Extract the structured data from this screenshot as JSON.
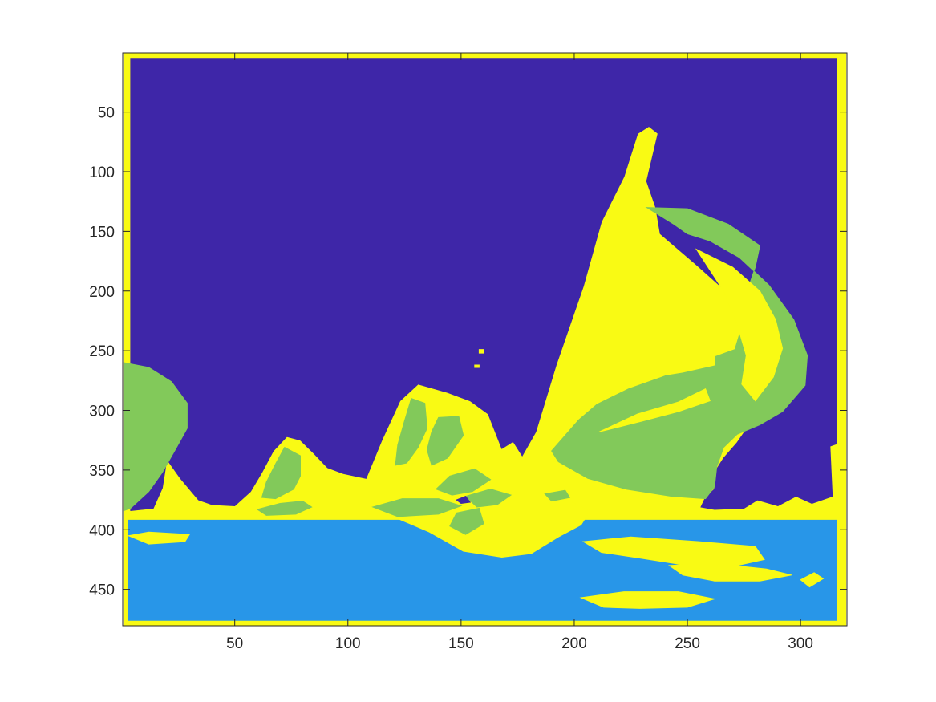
{
  "chart_data": {
    "type": "heatmap",
    "title": "",
    "xlabel": "",
    "ylabel": "",
    "xlim": [
      1,
      320
    ],
    "ylim": [
      1,
      480
    ],
    "y_reversed": true,
    "x_ticks": [
      50,
      100,
      150,
      200,
      250,
      300
    ],
    "y_ticks": [
      50,
      100,
      150,
      200,
      250,
      300,
      350,
      400,
      450
    ],
    "grid": false,
    "legend": "none",
    "classes": [
      {
        "id": 1,
        "color": "#3e26a8"
      },
      {
        "id": 2,
        "color": "#2896e8"
      },
      {
        "id": 3,
        "color": "#82c95a"
      },
      {
        "id": 4,
        "color": "#f9fa14"
      }
    ],
    "regions": [
      {
        "class": 4,
        "points": [
          [
            1,
            1
          ],
          [
            320,
            1
          ],
          [
            320,
            480
          ],
          [
            1,
            480
          ]
        ]
      },
      {
        "class": 1,
        "points": [
          [
            4,
            5
          ],
          [
            316,
            5
          ],
          [
            316,
            328
          ],
          [
            313,
            330
          ],
          [
            314,
            372
          ],
          [
            305,
            378
          ],
          [
            298,
            372
          ],
          [
            290,
            380
          ],
          [
            281,
            375
          ],
          [
            275,
            382
          ],
          [
            262,
            383
          ],
          [
            256,
            381
          ],
          [
            258,
            373
          ],
          [
            262,
            366
          ],
          [
            262,
            352
          ],
          [
            266,
            340
          ],
          [
            272,
            327
          ],
          [
            280,
            305
          ],
          [
            283,
            285
          ],
          [
            280,
            255
          ],
          [
            278,
            230
          ],
          [
            270,
            205
          ],
          [
            254,
            178
          ],
          [
            238,
            152
          ],
          [
            236,
            130
          ],
          [
            232,
            108
          ],
          [
            237,
            68
          ],
          [
            233,
            62
          ],
          [
            228,
            68
          ],
          [
            222,
            104
          ],
          [
            212,
            142
          ],
          [
            204,
            196
          ],
          [
            192,
            262
          ],
          [
            183,
            318
          ],
          [
            177,
            338
          ],
          [
            173,
            326
          ],
          [
            168,
            332
          ],
          [
            162,
            303
          ],
          [
            154,
            292
          ],
          [
            144,
            285
          ],
          [
            131,
            278
          ],
          [
            123,
            292
          ],
          [
            115,
            325
          ],
          [
            108,
            357
          ],
          [
            98,
            353
          ],
          [
            91,
            348
          ],
          [
            85,
            336
          ],
          [
            79,
            325
          ],
          [
            73,
            322
          ],
          [
            67,
            334
          ],
          [
            62,
            352
          ],
          [
            57,
            368
          ],
          [
            50,
            380
          ],
          [
            40,
            379
          ],
          [
            34,
            375
          ],
          [
            26,
            357
          ],
          [
            20,
            341
          ],
          [
            18,
            365
          ],
          [
            14,
            382
          ],
          [
            4,
            384
          ]
        ]
      },
      {
        "class": 2,
        "points": [
          [
            3,
            392
          ],
          [
            316,
            392
          ],
          [
            316,
            476
          ],
          [
            3,
            476
          ]
        ]
      },
      {
        "class": 4,
        "points": [
          [
            120,
            389
          ],
          [
            136,
            402
          ],
          [
            151,
            418
          ],
          [
            168,
            423
          ],
          [
            181,
            420
          ],
          [
            193,
            406
          ],
          [
            203,
            396
          ],
          [
            207,
            384
          ],
          [
            197,
            375
          ],
          [
            185,
            370
          ],
          [
            170,
            374
          ],
          [
            153,
            381
          ],
          [
            135,
            386
          ]
        ]
      },
      {
        "class": 4,
        "points": [
          [
            204,
            410
          ],
          [
            225,
            406
          ],
          [
            255,
            410
          ],
          [
            280,
            414
          ],
          [
            284,
            425
          ],
          [
            272,
            430
          ],
          [
            250,
            430
          ],
          [
            230,
            424
          ],
          [
            212,
            419
          ]
        ]
      },
      {
        "class": 4,
        "points": [
          [
            203,
            457
          ],
          [
            222,
            452
          ],
          [
            246,
            452
          ],
          [
            262,
            458
          ],
          [
            250,
            465
          ],
          [
            229,
            466
          ],
          [
            213,
            465
          ]
        ]
      },
      {
        "class": 4,
        "points": [
          [
            242,
            430
          ],
          [
            260,
            428
          ],
          [
            285,
            433
          ],
          [
            296,
            438
          ],
          [
            282,
            443
          ],
          [
            262,
            443
          ],
          [
            248,
            438
          ]
        ]
      },
      {
        "class": 4,
        "points": [
          [
            300,
            442
          ],
          [
            306,
            436
          ],
          [
            310,
            441
          ],
          [
            304,
            448
          ]
        ]
      },
      {
        "class": 4,
        "points": [
          [
            3,
            405
          ],
          [
            12,
            402
          ],
          [
            30,
            404
          ],
          [
            28,
            410
          ],
          [
            12,
            412
          ]
        ]
      },
      {
        "class": 3,
        "points": [
          [
            1,
            260
          ],
          [
            12,
            264
          ],
          [
            22,
            276
          ],
          [
            29,
            294
          ],
          [
            29,
            315
          ],
          [
            24,
            332
          ],
          [
            18,
            352
          ],
          [
            12,
            368
          ],
          [
            4,
            382
          ],
          [
            1,
            384
          ]
        ]
      },
      {
        "class": 3,
        "points": [
          [
            232,
            130
          ],
          [
            250,
            131
          ],
          [
            268,
            144
          ],
          [
            282,
            162
          ],
          [
            280,
            180
          ],
          [
            275,
            208
          ],
          [
            274,
            230
          ],
          [
            271,
            249
          ],
          [
            255,
            260
          ],
          [
            239,
            272
          ],
          [
            224,
            282
          ],
          [
            210,
            295
          ],
          [
            202,
            308
          ],
          [
            190,
            334
          ],
          [
            193,
            343
          ],
          [
            206,
            357
          ],
          [
            223,
            366
          ],
          [
            243,
            372
          ],
          [
            258,
            374
          ],
          [
            262,
            364
          ],
          [
            263,
            347
          ],
          [
            266,
            331
          ],
          [
            272,
            320
          ],
          [
            282,
            312
          ],
          [
            292,
            301
          ],
          [
            302,
            279
          ],
          [
            303,
            254
          ],
          [
            297,
            224
          ],
          [
            286,
            195
          ],
          [
            273,
            172
          ],
          [
            260,
            158
          ],
          [
            250,
            152
          ],
          [
            244,
            144
          ]
        ]
      },
      {
        "class": 3,
        "points": [
          [
            72,
            331
          ],
          [
            79,
            338
          ],
          [
            79,
            355
          ],
          [
            76,
            366
          ],
          [
            68,
            374
          ],
          [
            62,
            373
          ],
          [
            64,
            360
          ],
          [
            68,
            345
          ]
        ]
      },
      {
        "class": 3,
        "points": [
          [
            60,
            383
          ],
          [
            70,
            378
          ],
          [
            80,
            376
          ],
          [
            84,
            381
          ],
          [
            77,
            387
          ],
          [
            64,
            388
          ]
        ]
      },
      {
        "class": 3,
        "points": [
          [
            128,
            290
          ],
          [
            134,
            294
          ],
          [
            135,
            315
          ],
          [
            131,
            331
          ],
          [
            126,
            344
          ],
          [
            121,
            346
          ],
          [
            122,
            329
          ],
          [
            125,
            309
          ]
        ]
      },
      {
        "class": 3,
        "points": [
          [
            140,
            306
          ],
          [
            149,
            305
          ],
          [
            151,
            321
          ],
          [
            144,
            340
          ],
          [
            137,
            346
          ],
          [
            135,
            333
          ],
          [
            137,
            318
          ]
        ]
      },
      {
        "class": 3,
        "points": [
          [
            145,
            355
          ],
          [
            156,
            349
          ],
          [
            163,
            358
          ],
          [
            155,
            368
          ],
          [
            146,
            371
          ],
          [
            139,
            366
          ]
        ]
      },
      {
        "class": 3,
        "points": [
          [
            111,
            381
          ],
          [
            124,
            374
          ],
          [
            140,
            374
          ],
          [
            150,
            380
          ],
          [
            140,
            387
          ],
          [
            122,
            389
          ]
        ]
      },
      {
        "class": 3,
        "points": [
          [
            148,
            386
          ],
          [
            158,
            382
          ],
          [
            160,
            395
          ],
          [
            152,
            404
          ],
          [
            145,
            397
          ]
        ]
      },
      {
        "class": 3,
        "points": [
          [
            152,
            372
          ],
          [
            163,
            366
          ],
          [
            172,
            371
          ],
          [
            166,
            379
          ],
          [
            157,
            381
          ]
        ]
      },
      {
        "class": 3,
        "points": [
          [
            187,
            370
          ],
          [
            196,
            367
          ],
          [
            198,
            373
          ],
          [
            190,
            376
          ]
        ]
      },
      {
        "class": 4,
        "points": [
          [
            211,
            318
          ],
          [
            228,
            303
          ],
          [
            246,
            293
          ],
          [
            258,
            282
          ],
          [
            260,
            292
          ],
          [
            246,
            301
          ],
          [
            230,
            309
          ]
        ]
      },
      {
        "class": 4,
        "points": [
          [
            254,
            165
          ],
          [
            270,
            180
          ],
          [
            282,
            200
          ],
          [
            289,
            224
          ],
          [
            292,
            248
          ],
          [
            288,
            272
          ],
          [
            280,
            292
          ],
          [
            274,
            278
          ],
          [
            276,
            254
          ],
          [
            272,
            228
          ],
          [
            266,
            200
          ]
        ]
      },
      {
        "class": 4,
        "points": [
          [
            236,
            265
          ],
          [
            250,
            258
          ],
          [
            262,
            254
          ],
          [
            262,
            262
          ],
          [
            248,
            268
          ],
          [
            238,
            271
          ]
        ]
      },
      {
        "class": 1,
        "points": [
          [
            157,
            254
          ],
          [
            159,
            253
          ],
          [
            160,
            256
          ],
          [
            158,
            257
          ]
        ]
      },
      {
        "class": 1,
        "points": [
          [
            148,
            375
          ],
          [
            152,
            372
          ],
          [
            154,
            377
          ],
          [
            150,
            378
          ]
        ]
      },
      {
        "class": 4,
        "points": [
          [
            158,
            249
          ],
          [
            160,
            249
          ],
          [
            160,
            252
          ],
          [
            158,
            252
          ]
        ]
      },
      {
        "class": 4,
        "points": [
          [
            156,
            262
          ],
          [
            158,
            262
          ],
          [
            158,
            264
          ],
          [
            156,
            264
          ]
        ]
      }
    ]
  }
}
